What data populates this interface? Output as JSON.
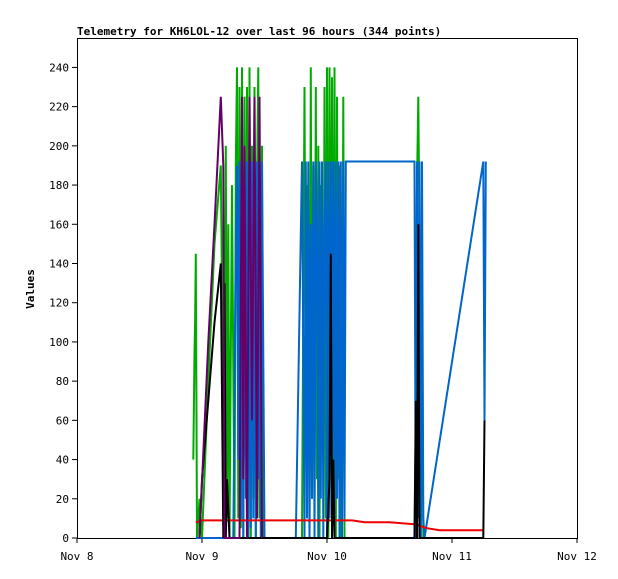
{
  "chart_data": {
    "type": "line",
    "title": "Telemetry for KH6LOL-12 over last 96 hours (344 points)",
    "xlabel": "",
    "ylabel": "Values",
    "x_ticks": [
      "Nov 8",
      "Nov 9",
      "Nov 10",
      "Nov 11",
      "Nov 12"
    ],
    "xlim": [
      "Nov 8",
      "Nov 12"
    ],
    "ylim": [
      0,
      255
    ],
    "y_ticks": [
      0,
      20,
      40,
      60,
      80,
      100,
      120,
      140,
      160,
      180,
      200,
      220,
      240
    ],
    "grid": false,
    "legend": "none",
    "series": [
      {
        "color": "#00aa00",
        "x": [
          0.93,
          0.94,
          0.945,
          0.95,
          0.96,
          0.97,
          0.98,
          0.99,
          1.0,
          1.05,
          1.1,
          1.15,
          1.18,
          1.19,
          1.2,
          1.21,
          1.22,
          1.24,
          1.26,
          1.27,
          1.28,
          1.29,
          1.3,
          1.31,
          1.32,
          1.33,
          1.34,
          1.35,
          1.36,
          1.37,
          1.38,
          1.39,
          1.4,
          1.41,
          1.42,
          1.43,
          1.44,
          1.45,
          1.46,
          1.47,
          1.48,
          1.49,
          1.5,
          1.8,
          1.82,
          1.83,
          1.84,
          1.85,
          1.86,
          1.87,
          1.88,
          1.89,
          1.9,
          1.91,
          1.92,
          1.93,
          1.94,
          1.95,
          1.96,
          1.97,
          1.98,
          1.99,
          2.0,
          2.01,
          2.02,
          2.03,
          2.04,
          2.05,
          2.06,
          2.07,
          2.08,
          2.09,
          2.1,
          2.11,
          2.12,
          2.13,
          2.14,
          2.7,
          2.71,
          2.72,
          2.73,
          2.74,
          2.75,
          2.76,
          2.77
        ],
        "y": [
          40,
          95,
          110,
          145,
          0,
          10,
          20,
          5,
          0,
          80,
          150,
          190,
          0,
          200,
          10,
          160,
          0,
          180,
          0,
          190,
          240,
          10,
          230,
          5,
          240,
          0,
          225,
          40,
          230,
          10,
          240,
          0,
          200,
          20,
          230,
          0,
          180,
          240,
          10,
          120,
          200,
          0,
          0,
          0,
          230,
          60,
          180,
          160,
          0,
          240,
          20,
          190,
          10,
          230,
          30,
          200,
          0,
          180,
          160,
          40,
          230,
          10,
          240,
          0,
          240,
          60,
          235,
          20,
          240,
          0,
          225,
          30,
          190,
          0,
          40,
          225,
          0,
          0,
          60,
          180,
          225,
          150,
          0,
          100,
          0
        ]
      },
      {
        "color": "#0066cc",
        "x": [
          0.95,
          1.0,
          1.1,
          1.2,
          1.22,
          1.25,
          1.27,
          1.28,
          1.29,
          1.3,
          1.31,
          1.32,
          1.33,
          1.34,
          1.35,
          1.36,
          1.37,
          1.38,
          1.39,
          1.4,
          1.41,
          1.42,
          1.43,
          1.44,
          1.45,
          1.46,
          1.47,
          1.48,
          1.5,
          1.6,
          1.75,
          1.8,
          1.82,
          1.83,
          1.84,
          1.85,
          1.86,
          1.87,
          1.88,
          1.89,
          1.9,
          1.91,
          1.92,
          1.93,
          1.94,
          1.95,
          1.96,
          1.97,
          1.98,
          1.99,
          2.0,
          2.01,
          2.02,
          2.03,
          2.04,
          2.05,
          2.06,
          2.07,
          2.08,
          2.09,
          2.1,
          2.11,
          2.12,
          2.13,
          2.14,
          2.15,
          2.7,
          2.71,
          2.72,
          2.73,
          2.74,
          2.75,
          2.76,
          2.77,
          2.78,
          3.25,
          3.26,
          3.27
        ],
        "y": [
          0,
          0,
          0,
          0,
          0,
          0,
          150,
          190,
          40,
          192,
          10,
          192,
          0,
          192,
          20,
          192,
          0,
          192,
          5,
          192,
          10,
          192,
          0,
          192,
          30,
          192,
          0,
          192,
          0,
          0,
          0,
          192,
          0,
          192,
          10,
          192,
          0,
          160,
          20,
          192,
          0,
          192,
          160,
          0,
          192,
          20,
          192,
          0,
          160,
          192,
          0,
          192,
          10,
          192,
          40,
          192,
          0,
          192,
          20,
          192,
          0,
          192,
          0,
          192,
          10,
          192,
          192,
          0,
          192,
          10,
          192,
          0,
          192,
          10,
          0,
          192,
          60,
          192
        ]
      },
      {
        "color": "#ee0000",
        "x": [
          0.95,
          1.0,
          1.1,
          1.2,
          1.3,
          1.5,
          1.8,
          2.0,
          2.1,
          2.2,
          2.3,
          2.5,
          2.7,
          2.8,
          2.9,
          3.0,
          3.1,
          3.2,
          3.25
        ],
        "y": [
          8,
          9,
          9,
          9,
          9,
          9,
          9,
          9,
          9,
          9,
          8,
          8,
          7,
          5,
          4,
          4,
          4,
          4,
          4
        ]
      },
      {
        "color": "#000000",
        "x": [
          0.98,
          1.0,
          1.05,
          1.1,
          1.15,
          1.17,
          1.18,
          1.19,
          1.2,
          1.22,
          1.25,
          1.3,
          1.35,
          1.4,
          1.45,
          1.5,
          1.8,
          1.9,
          2.0,
          2.02,
          2.03,
          2.04,
          2.05,
          2.06,
          2.08,
          2.1,
          2.5,
          2.7,
          2.71,
          2.72,
          2.73,
          2.74,
          2.75,
          2.76,
          2.8,
          3.25,
          3.26
        ],
        "y": [
          0,
          30,
          70,
          110,
          140,
          0,
          130,
          0,
          30,
          0,
          0,
          0,
          0,
          0,
          0,
          0,
          0,
          0,
          0,
          30,
          145,
          0,
          40,
          0,
          0,
          0,
          0,
          0,
          70,
          0,
          160,
          0,
          0,
          0,
          0,
          0,
          60
        ]
      },
      {
        "color": "#660066",
        "x": [
          0.98,
          1.05,
          1.1,
          1.15,
          1.17,
          1.18,
          1.2,
          1.3,
          1.32,
          1.33,
          1.34,
          1.36,
          1.38,
          1.4,
          1.42,
          1.44,
          1.46,
          1.48
        ],
        "y": [
          0,
          100,
          160,
          225,
          190,
          0,
          0,
          0,
          225,
          30,
          200,
          0,
          225,
          60,
          225,
          10,
          225,
          0
        ]
      }
    ]
  }
}
